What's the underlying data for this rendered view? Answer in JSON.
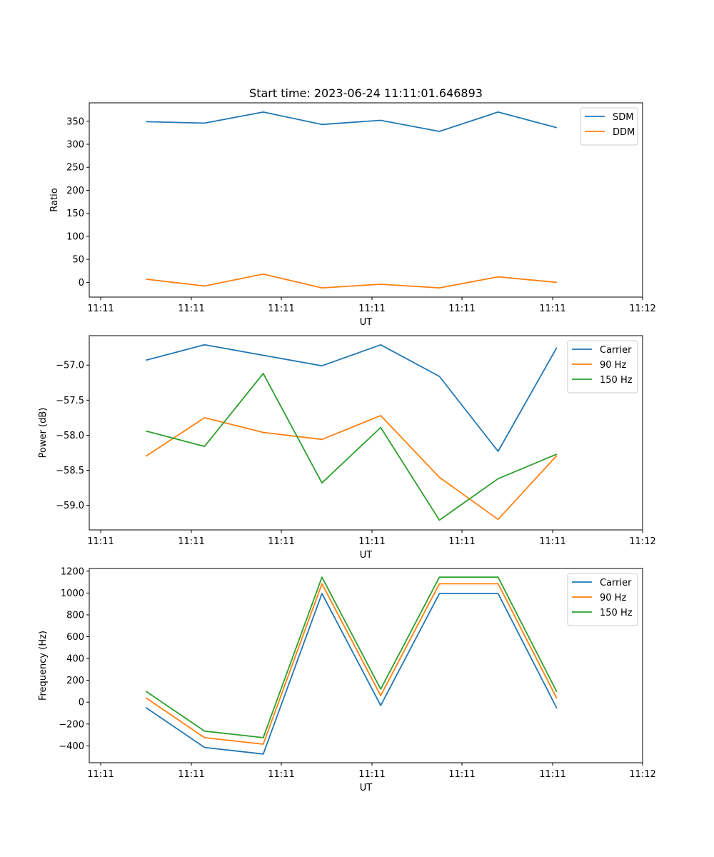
{
  "title": "Start time: 2023-06-24 11:11:01.646893",
  "colors": {
    "blue": "#1f77b4",
    "orange": "#ff7f0e",
    "green": "#2ca02c"
  },
  "chart_data": [
    {
      "type": "line",
      "title": "Start time: 2023-06-24 11:11:01.646893",
      "xlabel": "UT",
      "ylabel": "Ratio",
      "x_tick_labels": [
        "11:11",
        "11:11",
        "11:11",
        "11:11",
        "11:11",
        "11:11",
        "11:12"
      ],
      "xlim": [
        0,
        6
      ],
      "ylim": [
        -32,
        390
      ],
      "y_ticks": [
        0,
        50,
        100,
        150,
        200,
        250,
        300,
        350
      ],
      "y_tick_labels": [
        "0",
        "50",
        "100",
        "150",
        "200",
        "250",
        "300",
        "350"
      ],
      "x": [
        0.5,
        1.15,
        1.8,
        2.45,
        3.1,
        3.75,
        4.4,
        5.05
      ],
      "legend_placement": "upper right",
      "grid": false,
      "series": [
        {
          "name": "SDM",
          "color": "#1f77b4",
          "values": [
            349,
            346,
            370,
            343,
            352,
            328,
            370,
            336
          ]
        },
        {
          "name": "DDM",
          "color": "#ff7f0e",
          "values": [
            7,
            -8,
            18,
            -12,
            -4,
            -12,
            12,
            0
          ]
        }
      ]
    },
    {
      "type": "line",
      "xlabel": "UT",
      "ylabel": "Power (dB)",
      "x_tick_labels": [
        "11:11",
        "11:11",
        "11:11",
        "11:11",
        "11:11",
        "11:11",
        "11:12"
      ],
      "xlim": [
        0,
        6
      ],
      "ylim": [
        -59.35,
        -56.58
      ],
      "y_ticks": [
        -59.0,
        -58.5,
        -58.0,
        -57.5,
        -57.0
      ],
      "y_tick_labels": [
        "−59.0",
        "−58.5",
        "−58.0",
        "−57.5",
        "−57.0"
      ],
      "x": [
        0.5,
        1.15,
        1.8,
        2.45,
        3.1,
        3.75,
        4.4,
        5.05
      ],
      "legend_placement": "upper right",
      "grid": false,
      "series": [
        {
          "name": "Carrier",
          "color": "#1f77b4",
          "values": [
            -56.93,
            -56.71,
            -56.86,
            -57.01,
            -56.71,
            -57.16,
            -58.23,
            -56.75
          ]
        },
        {
          "name": "90 Hz",
          "color": "#ff7f0e",
          "values": [
            -58.3,
            -57.75,
            -57.96,
            -58.06,
            -57.72,
            -58.6,
            -59.2,
            -58.29
          ]
        },
        {
          "name": "150 Hz",
          "color": "#2ca02c",
          "values": [
            -57.94,
            -58.16,
            -57.12,
            -58.68,
            -57.89,
            -59.21,
            -58.62,
            -58.27
          ]
        }
      ]
    },
    {
      "type": "line",
      "xlabel": "UT",
      "ylabel": "Frequency (Hz)",
      "x_tick_labels": [
        "11:11",
        "11:11",
        "11:11",
        "11:11",
        "11:11",
        "11:11",
        "11:12"
      ],
      "xlim": [
        0,
        6
      ],
      "ylim": [
        -555,
        1225
      ],
      "y_ticks": [
        -400,
        -200,
        0,
        200,
        400,
        600,
        800,
        1000,
        1200
      ],
      "y_tick_labels": [
        "−400",
        "−200",
        "0",
        "200",
        "400",
        "600",
        "800",
        "1000",
        "1200"
      ],
      "x": [
        0.5,
        1.15,
        1.8,
        2.45,
        3.1,
        3.75,
        4.4,
        5.05
      ],
      "legend_placement": "upper right",
      "grid": false,
      "series": [
        {
          "name": "Carrier",
          "color": "#1f77b4",
          "values": [
            -50,
            -415,
            -475,
            995,
            -30,
            995,
            995,
            -55
          ]
        },
        {
          "name": "90 Hz",
          "color": "#ff7f0e",
          "values": [
            40,
            -325,
            -385,
            1085,
            60,
            1085,
            1085,
            35
          ]
        },
        {
          "name": "150 Hz",
          "color": "#2ca02c",
          "values": [
            100,
            -265,
            -325,
            1145,
            120,
            1145,
            1145,
            95
          ]
        }
      ]
    }
  ]
}
